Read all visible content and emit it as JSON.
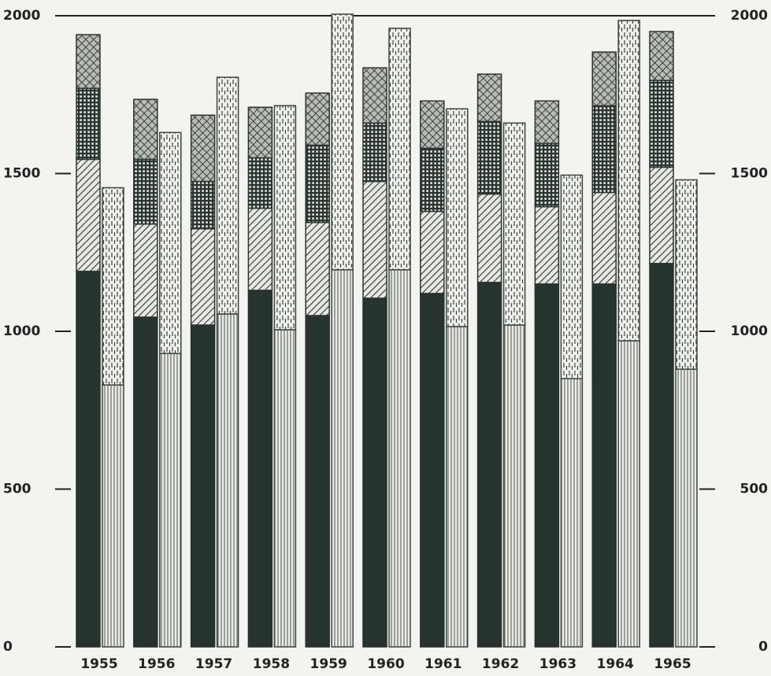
{
  "chart_data": {
    "type": "bar",
    "stacked": true,
    "categories": [
      "1955",
      "1956",
      "1957",
      "1958",
      "1959",
      "1960",
      "1961",
      "1962",
      "1963",
      "1964",
      "1965"
    ],
    "series": [
      {
        "stack": "left",
        "pattern": "solid",
        "color": "#26332f",
        "values": [
          1190,
          1045,
          1020,
          1130,
          1050,
          1105,
          1120,
          1155,
          1150,
          1150,
          1215
        ]
      },
      {
        "stack": "left",
        "pattern": "diagonal",
        "color": "#2b3632",
        "values": [
          355,
          295,
          305,
          260,
          295,
          370,
          260,
          280,
          245,
          290,
          305
        ]
      },
      {
        "stack": "left",
        "pattern": "grid",
        "color": "#2b3632",
        "values": [
          225,
          205,
          150,
          160,
          245,
          185,
          200,
          230,
          200,
          275,
          275
        ]
      },
      {
        "stack": "left",
        "pattern": "crosshatch",
        "color": "#2b3632",
        "values": [
          170,
          190,
          210,
          160,
          165,
          175,
          150,
          150,
          135,
          170,
          155
        ]
      },
      {
        "stack": "right",
        "pattern": "vertical-lines",
        "color": "#3a4440",
        "values": [
          830,
          930,
          1055,
          1005,
          1195,
          1195,
          1015,
          1020,
          850,
          970,
          880
        ]
      },
      {
        "stack": "right",
        "pattern": "vertical-dashes",
        "color": "#3a4440",
        "values": [
          625,
          700,
          750,
          710,
          810,
          765,
          690,
          640,
          645,
          1015,
          600
        ]
      }
    ],
    "ylim": [
      0,
      2000
    ],
    "yticks": [
      0,
      500,
      1000,
      1500,
      2000
    ],
    "right_axis_labels": true,
    "top_line": true
  }
}
